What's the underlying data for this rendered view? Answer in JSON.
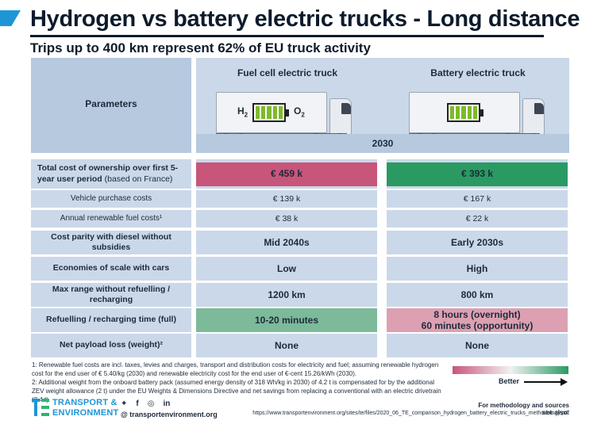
{
  "header": {
    "title": "Hydrogen vs battery electric trucks - Long distance",
    "subtitle": "Trips up to 400 km represent 62% of EU truck activity"
  },
  "table": {
    "params_label": "Parameters",
    "col_fc": "Fuel cell electric truck",
    "col_be": "Battery electric truck",
    "year": "2030",
    "fc_h2": "H",
    "fc_o2": "O",
    "tco": {
      "label_bold": "Total cost of ownership  over first 5-year user period",
      "label_normal": " (based on France)",
      "fc": "€ 459 k",
      "be": "€ 393 k"
    },
    "rows": [
      {
        "label": "Vehicle purchase costs",
        "fc": "€ 139 k",
        "be": "€ 167 k"
      },
      {
        "label": "Annual renewable fuel costs¹",
        "fc": "€ 38 k",
        "be": "€ 22 k"
      },
      {
        "label": "Cost parity with diesel without subsidies",
        "fc": "Mid 2040s",
        "be": "Early 2030s"
      },
      {
        "label": "Economies of scale with cars",
        "fc": "Low",
        "be": "High"
      },
      {
        "label": "Max range without refuelling / recharging",
        "fc": "1200 km",
        "be": "800 km"
      },
      {
        "label": "Refuelling / recharging time (full)",
        "fc": "10-20  minutes",
        "be_line1": "8 hours (overnight)",
        "be_line2": "60 minutes (opportunity)"
      },
      {
        "label": "Net payload loss (weight)²",
        "fc": "None",
        "be": "None"
      }
    ]
  },
  "colors": {
    "worse": "#c8557a",
    "better": "#2a9a62",
    "fc_refuel": "#7cba9a",
    "be_refuel": "#dca0b2"
  },
  "footnotes": {
    "note1": "1: Renewable fuel costs are incl. taxes, levies and charges, transport and distribution costs for electricity and fuel; assuming renewable hydrogen cost for the end user of € 5.40/kg (2030) and renewable electricity cost for the end user of €-cent 15.26/kWh (2030).",
    "note2": "2: Additional weight from the onboard battery pack (assumed energy density of 318 Wh/kg in 2030) of 4.2 t is compensated for by the additional ZEV weight allowance (2 t) under the EU Weights & Dimensions Directive and net savings from replacing a conventional with an electric drivetrain (2.4 t).",
    "scale_label": "Better"
  },
  "footer": {
    "logo_line1": "TRANSPORT &",
    "logo_line2": "ENVIRONMENT",
    "social_icons": [
      "twitter-icon",
      "facebook-icon",
      "instagram-icon",
      "linkedin-icon"
    ],
    "website": "@ transportenvironment.org",
    "methodology": "For methodology and sources see also:",
    "url": "https://www.transportenvironment.org/sites/te/files/2020_06_TE_comparison_hydrogen_battery_electric_trucks_methodology.pdf"
  }
}
